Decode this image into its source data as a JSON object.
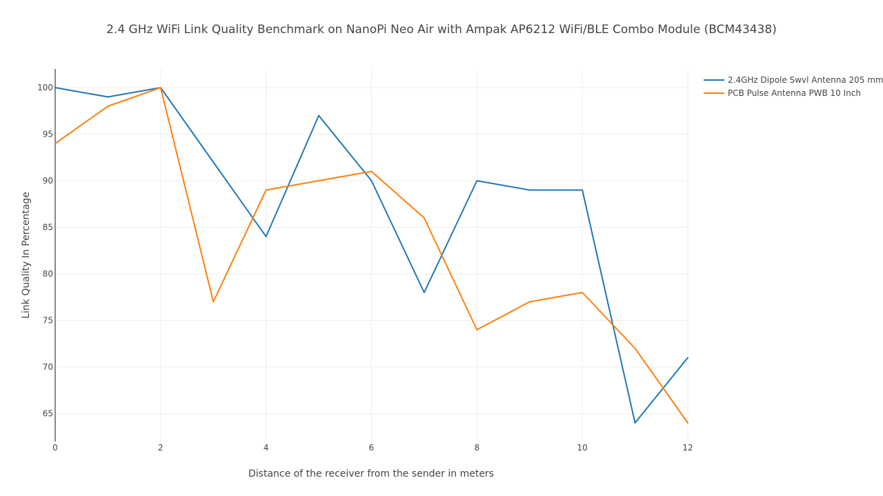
{
  "chart_data": {
    "type": "line",
    "title": "2.4 GHz WiFi Link Quality Benchmark on NanoPi Neo Air with Ampak AP6212 WiFi/BLE Combo Module (BCM43438)",
    "xlabel": "Distance of the receiver from the sender in meters",
    "ylabel": "Link Quality In Percentage",
    "xlim": [
      0,
      12
    ],
    "ylim": [
      62,
      102
    ],
    "x_ticks": [
      0,
      2,
      4,
      6,
      8,
      10,
      12
    ],
    "y_ticks": [
      65,
      70,
      75,
      80,
      85,
      90,
      95,
      100
    ],
    "grid": true,
    "legend_position": "top-right",
    "x": [
      0,
      1,
      2,
      3,
      4,
      5,
      6,
      7,
      8,
      9,
      10,
      11,
      12
    ],
    "series": [
      {
        "name": "2.4GHz Dipole Swvl Antenna 205 mm",
        "color": "#1f77b4",
        "values": [
          100,
          99,
          100,
          92,
          84,
          97,
          90,
          78,
          90,
          89,
          89,
          64,
          71
        ]
      },
      {
        "name": "PCB Pulse Antenna PWB 10 Inch",
        "color": "#ff7f0e",
        "values": [
          94,
          98,
          100,
          77,
          89,
          90,
          91,
          86,
          74,
          77,
          78,
          72,
          64
        ]
      }
    ]
  }
}
